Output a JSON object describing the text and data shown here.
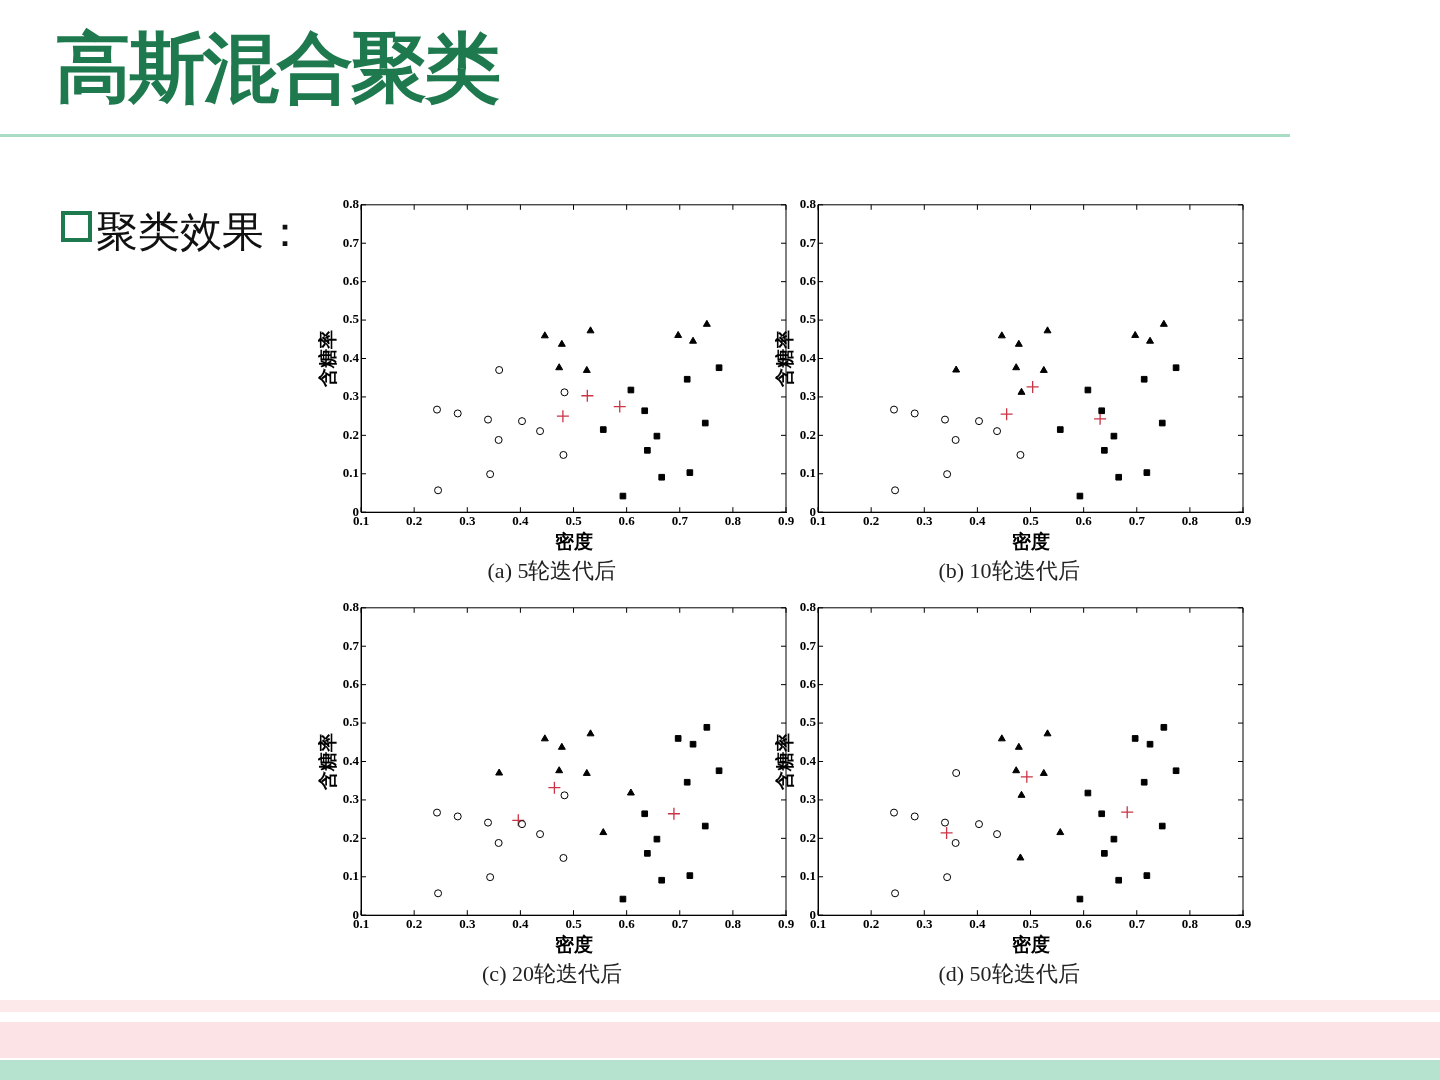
{
  "chart_data": [
    {
      "type": "scatter",
      "title": "(a) 5轮迭代后",
      "xlabel": "密度",
      "ylabel": "含糖率",
      "annotations": [
        "高斯混合聚类",
        "聚类效果："
      ],
      "xlim": [
        0.1,
        0.9
      ],
      "ylim": [
        0,
        0.8
      ],
      "xticks": [
        0.1,
        0.2,
        0.3,
        0.4,
        0.5,
        0.6,
        0.7,
        0.8,
        0.9
      ],
      "yticks": [
        0,
        0.1,
        0.2,
        0.3,
        0.4,
        0.5,
        0.6,
        0.7,
        0.8
      ],
      "series": [
        {
          "marker": "circle",
          "color": "#000000",
          "x": [
            0.243,
            0.245,
            0.343,
            0.36,
            0.359,
            0.339,
            0.282,
            0.403,
            0.437,
            0.483,
            0.481
          ],
          "values": [
            0.267,
            0.057,
            0.099,
            0.37,
            0.188,
            0.241,
            0.257,
            0.237,
            0.211,
            0.312,
            0.149
          ]
        },
        {
          "marker": "triangle",
          "color": "#000000",
          "x": [
            0.446,
            0.478,
            0.473,
            0.532,
            0.525,
            0.697,
            0.725,
            0.751
          ],
          "values": [
            0.459,
            0.437,
            0.376,
            0.472,
            0.369,
            0.46,
            0.445,
            0.489
          ]
        },
        {
          "marker": "square",
          "color": "#000000",
          "x": [
            0.774,
            0.634,
            0.608,
            0.556,
            0.666,
            0.639,
            0.657,
            0.593,
            0.719,
            0.748,
            0.714
          ],
          "values": [
            0.376,
            0.264,
            0.318,
            0.215,
            0.091,
            0.161,
            0.198,
            0.042,
            0.103,
            0.232,
            0.346
          ]
        },
        {
          "marker": "cross",
          "color": "#cc3344",
          "x": [
            0.48,
            0.526,
            0.587
          ],
          "values": [
            0.25,
            0.303,
            0.275
          ]
        }
      ]
    },
    {
      "type": "scatter",
      "title": "(b) 10轮迭代后",
      "xlabel": "密度",
      "ylabel": "含糖率",
      "xlim": [
        0.1,
        0.9
      ],
      "ylim": [
        0,
        0.8
      ],
      "xticks": [
        0.1,
        0.2,
        0.3,
        0.4,
        0.5,
        0.6,
        0.7,
        0.8,
        0.9
      ],
      "yticks": [
        0,
        0.1,
        0.2,
        0.3,
        0.4,
        0.5,
        0.6,
        0.7,
        0.8
      ],
      "series": [
        {
          "marker": "circle",
          "color": "#000000",
          "x": [
            0.243,
            0.245,
            0.343,
            0.359,
            0.339,
            0.282,
            0.403,
            0.437,
            0.481
          ],
          "values": [
            0.267,
            0.057,
            0.099,
            0.188,
            0.241,
            0.257,
            0.237,
            0.211,
            0.149
          ]
        },
        {
          "marker": "triangle",
          "color": "#000000",
          "x": [
            0.36,
            0.446,
            0.478,
            0.473,
            0.483,
            0.532,
            0.525,
            0.697,
            0.725,
            0.751
          ],
          "values": [
            0.37,
            0.459,
            0.437,
            0.376,
            0.312,
            0.472,
            0.369,
            0.46,
            0.445,
            0.489
          ]
        },
        {
          "marker": "square",
          "color": "#000000",
          "x": [
            0.774,
            0.634,
            0.608,
            0.556,
            0.666,
            0.639,
            0.657,
            0.593,
            0.719,
            0.748,
            0.714
          ],
          "values": [
            0.376,
            0.264,
            0.318,
            0.215,
            0.091,
            0.161,
            0.198,
            0.042,
            0.103,
            0.232,
            0.346
          ]
        },
        {
          "marker": "cross",
          "color": "#cc3344",
          "x": [
            0.455,
            0.504,
            0.631
          ],
          "values": [
            0.255,
            0.326,
            0.243
          ]
        }
      ]
    },
    {
      "type": "scatter",
      "title": "(c) 20轮迭代后",
      "xlabel": "密度",
      "ylabel": "含糖率",
      "xlim": [
        0.1,
        0.9
      ],
      "ylim": [
        0,
        0.8
      ],
      "xticks": [
        0.1,
        0.2,
        0.3,
        0.4,
        0.5,
        0.6,
        0.7,
        0.8,
        0.9
      ],
      "yticks": [
        0,
        0.1,
        0.2,
        0.3,
        0.4,
        0.5,
        0.6,
        0.7,
        0.8
      ],
      "series": [
        {
          "marker": "circle",
          "color": "#000000",
          "x": [
            0.243,
            0.245,
            0.343,
            0.359,
            0.339,
            0.282,
            0.403,
            0.437,
            0.483,
            0.481
          ],
          "values": [
            0.267,
            0.057,
            0.099,
            0.188,
            0.241,
            0.257,
            0.237,
            0.211,
            0.312,
            0.149
          ]
        },
        {
          "marker": "triangle",
          "color": "#000000",
          "x": [
            0.36,
            0.446,
            0.478,
            0.473,
            0.532,
            0.525,
            0.608,
            0.556
          ],
          "values": [
            0.37,
            0.459,
            0.437,
            0.376,
            0.472,
            0.369,
            0.318,
            0.215
          ]
        },
        {
          "marker": "square",
          "color": "#000000",
          "x": [
            0.697,
            0.774,
            0.634,
            0.666,
            0.639,
            0.657,
            0.593,
            0.719,
            0.748,
            0.714,
            0.751,
            0.725
          ],
          "values": [
            0.46,
            0.376,
            0.264,
            0.091,
            0.161,
            0.198,
            0.042,
            0.103,
            0.232,
            0.346,
            0.489,
            0.445
          ]
        },
        {
          "marker": "cross",
          "color": "#cc3344",
          "x": [
            0.396,
            0.464,
            0.689
          ],
          "values": [
            0.247,
            0.332,
            0.264
          ]
        }
      ]
    },
    {
      "type": "scatter",
      "title": "(d) 50轮迭代后",
      "xlabel": "密度",
      "ylabel": "含糖率",
      "xlim": [
        0.1,
        0.9
      ],
      "ylim": [
        0,
        0.8
      ],
      "xticks": [
        0.1,
        0.2,
        0.3,
        0.4,
        0.5,
        0.6,
        0.7,
        0.8,
        0.9
      ],
      "yticks": [
        0,
        0.1,
        0.2,
        0.3,
        0.4,
        0.5,
        0.6,
        0.7,
        0.8
      ],
      "series": [
        {
          "marker": "circle",
          "color": "#000000",
          "x": [
            0.243,
            0.245,
            0.343,
            0.36,
            0.359,
            0.339,
            0.282,
            0.403,
            0.437
          ],
          "values": [
            0.267,
            0.057,
            0.099,
            0.37,
            0.188,
            0.241,
            0.257,
            0.237,
            0.211
          ]
        },
        {
          "marker": "triangle",
          "color": "#000000",
          "x": [
            0.446,
            0.478,
            0.473,
            0.483,
            0.532,
            0.525,
            0.556,
            0.481
          ],
          "values": [
            0.459,
            0.437,
            0.376,
            0.312,
            0.472,
            0.369,
            0.215,
            0.149
          ]
        },
        {
          "marker": "square",
          "color": "#000000",
          "x": [
            0.697,
            0.774,
            0.634,
            0.608,
            0.666,
            0.639,
            0.657,
            0.593,
            0.719,
            0.748,
            0.714,
            0.751,
            0.725
          ],
          "values": [
            0.46,
            0.376,
            0.264,
            0.318,
            0.091,
            0.161,
            0.198,
            0.042,
            0.103,
            0.232,
            0.346,
            0.489,
            0.445
          ]
        },
        {
          "marker": "cross",
          "color": "#cc3344",
          "x": [
            0.342,
            0.493,
            0.682
          ],
          "values": [
            0.214,
            0.36,
            0.268
          ]
        }
      ]
    }
  ]
}
